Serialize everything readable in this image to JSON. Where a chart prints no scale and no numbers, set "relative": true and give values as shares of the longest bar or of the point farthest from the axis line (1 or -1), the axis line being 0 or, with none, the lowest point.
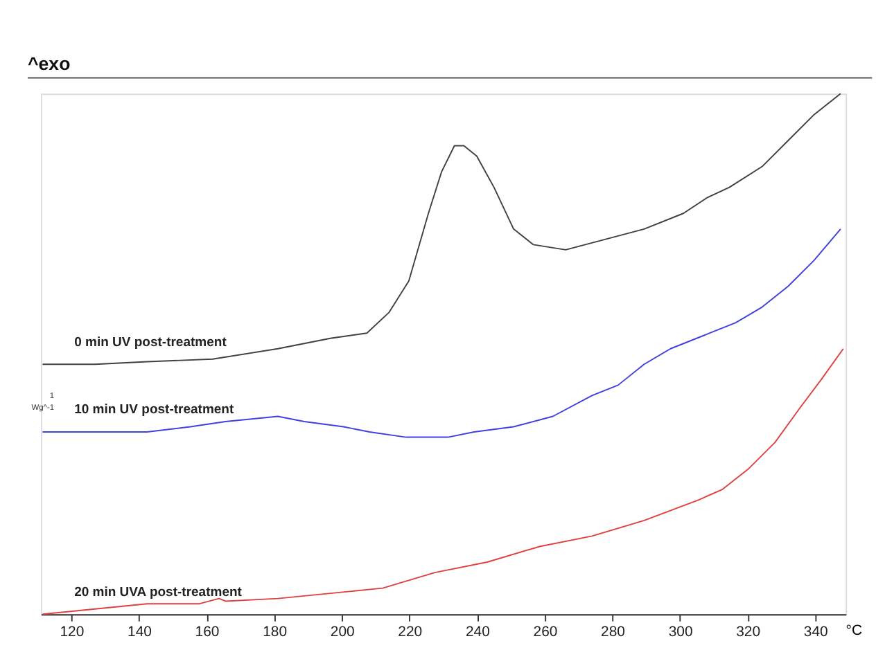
{
  "chart_data": {
    "type": "line",
    "title": "^exo",
    "xlabel": "°C",
    "ylabel": "Wg^-1",
    "annotations": [
      "1"
    ],
    "relative": true,
    "xlim": [
      111,
      349
    ],
    "xticks": [
      120,
      140,
      160,
      180,
      200,
      220,
      240,
      260,
      280,
      300,
      320,
      340
    ],
    "grid": false,
    "marker": "none",
    "line_style": "solid",
    "series": [
      {
        "name": "0 min UV post-treatment",
        "color": "#404040",
        "x": [
          111.5,
          127.0,
          142.4,
          161.8,
          181.1,
          196.6,
          207.4,
          214.0,
          219.8,
          225.6,
          229.5,
          233.3,
          236.1,
          239.9,
          245.0,
          250.8,
          256.6,
          266.2,
          277.8,
          289.4,
          301.0,
          308.0,
          314.6,
          324.3,
          332.0,
          339.7,
          347.5
        ],
        "values": [
          0.48,
          0.48,
          0.485,
          0.49,
          0.51,
          0.53,
          0.54,
          0.58,
          0.64,
          0.77,
          0.85,
          0.9,
          0.9,
          0.88,
          0.82,
          0.74,
          0.71,
          0.7,
          0.72,
          0.74,
          0.77,
          0.8,
          0.82,
          0.86,
          0.91,
          0.96,
          1
        ]
      },
      {
        "name": "10 min UV post-treatment",
        "color": "#4040e0",
        "x": [
          111.5,
          127.0,
          142.4,
          155.2,
          165.6,
          181.1,
          188.9,
          200.5,
          208.2,
          219.0,
          231.4,
          239.1,
          250.8,
          262.4,
          274.0,
          281.7,
          289.4,
          297.2,
          308.8,
          316.5,
          324.3,
          332.0,
          339.7,
          347.5
        ],
        "values": [
          0.35,
          0.35,
          0.35,
          0.36,
          0.37,
          0.38,
          0.37,
          0.36,
          0.35,
          0.34,
          0.34,
          0.35,
          0.36,
          0.38,
          0.42,
          0.44,
          0.48,
          0.51,
          0.54,
          0.56,
          0.59,
          0.63,
          0.68,
          0.74
        ]
      },
      {
        "name": "20 min UVA post-treatment",
        "color": "#e04040",
        "x": [
          111.5,
          127.0,
          142.4,
          157.9,
          163.7,
          165.6,
          181.1,
          196.6,
          212.1,
          227.5,
          243.0,
          258.5,
          274.0,
          289.4,
          305.7,
          312.6,
          320.4,
          328.1,
          335.9,
          341.7,
          348.3
        ],
        "values": [
          0,
          0.01,
          0.02,
          0.02,
          0.03,
          0.025,
          0.03,
          0.04,
          0.05,
          0.08,
          0.1,
          0.13,
          0.15,
          0.18,
          0.22,
          0.24,
          0.28,
          0.33,
          0.4,
          0.45,
          0.51
        ]
      }
    ]
  }
}
